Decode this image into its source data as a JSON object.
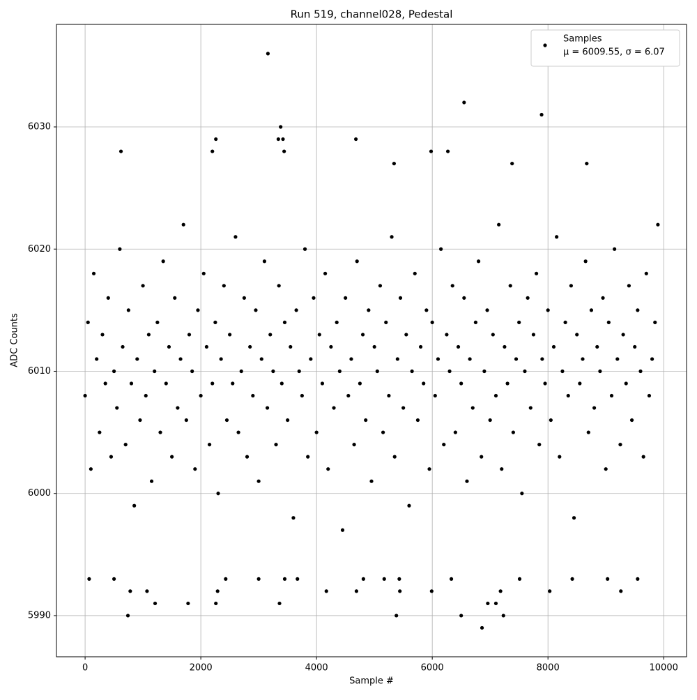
{
  "chart_data": {
    "type": "scatter",
    "title": "Run 519, channel028, Pedestal",
    "x_label": "Sample #",
    "y_label": "ADC Counts",
    "xlim": [
      -495,
      10395
    ],
    "ylim": [
      5986.63,
      6038.39
    ],
    "xticks": [
      0,
      2000,
      4000,
      6000,
      8000,
      10000
    ],
    "yticks": [
      5990,
      6000,
      6010,
      6020,
      6030
    ],
    "grid": true,
    "legend": "upper right",
    "legend_stats": "μ = 6009.55, σ = 6.07",
    "x": [
      3160,
      6550,
      7890,
      3380,
      620,
      2200,
      5980,
      6270,
      2260,
      3340,
      3420,
      4680,
      740,
      5380,
      6500,
      7230,
      6860,
      1210,
      1780,
      2260,
      3360,
      6960,
      7100,
      780,
      1070,
      2290,
      4170,
      4690,
      5440,
      5990,
      7180,
      8030,
      9260,
      70,
      500,
      2430,
      3000,
      3450,
      3670,
      4810,
      5170,
      5430,
      6330,
      7510,
      8420,
      9030,
      9550,
      8670,
      7380,
      5340,
      3440,
      0,
      50,
      100,
      150,
      200,
      250,
      300,
      350,
      400,
      450,
      500,
      550,
      600,
      650,
      700,
      750,
      800,
      850,
      900,
      950,
      1000,
      1050,
      1100,
      1150,
      1200,
      1250,
      1300,
      1350,
      1400,
      1450,
      1500,
      1550,
      1600,
      1650,
      1700,
      1750,
      1800,
      1850,
      1900,
      1950,
      2000,
      2050,
      2100,
      2150,
      2200,
      2250,
      2300,
      2350,
      2400,
      2450,
      2500,
      2550,
      2600,
      2650,
      2700,
      2750,
      2800,
      2850,
      2900,
      2950,
      3000,
      3050,
      3100,
      3150,
      3200,
      3250,
      3300,
      3350,
      3400,
      3450,
      3500,
      3550,
      3600,
      3650,
      3700,
      3750,
      3800,
      3850,
      3900,
      3950,
      4000,
      4050,
      4100,
      4150,
      4200,
      4250,
      4300,
      4350,
      4400,
      4450,
      4500,
      4550,
      4600,
      4650,
      4700,
      4750,
      4800,
      4850,
      4900,
      4950,
      5000,
      5050,
      5100,
      5150,
      5200,
      5250,
      5300,
      5350,
      5400,
      5450,
      5500,
      5550,
      5600,
      5650,
      5700,
      5750,
      5800,
      5850,
      5900,
      5950,
      6000,
      6050,
      6100,
      6150,
      6200,
      6250,
      6300,
      6350,
      6400,
      6450,
      6500,
      6550,
      6600,
      6650,
      6700,
      6750,
      6800,
      6850,
      6900,
      6950,
      7000,
      7050,
      7100,
      7150,
      7200,
      7250,
      7300,
      7350,
      7400,
      7450,
      7500,
      7550,
      7600,
      7650,
      7700,
      7750,
      7800,
      7850,
      7900,
      7950,
      8000,
      8050,
      8100,
      8150,
      8200,
      8250,
      8300,
      8350,
      8400,
      8450,
      8500,
      8550,
      8600,
      8650,
      8700,
      8750,
      8800,
      8850,
      8900,
      8950,
      9000,
      9050,
      9100,
      9150,
      9200,
      9250,
      9300,
      9350,
      9400,
      9450,
      9500,
      9550,
      9600,
      9650,
      9700,
      9750,
      9800,
      9850,
      9900
    ],
    "series": [
      {
        "name": "Samples",
        "color": "#000000",
        "values": [
          6036,
          6032,
          6031,
          6030,
          6028,
          6028,
          6028,
          6028,
          6029,
          6029,
          6029,
          6029,
          5990,
          5990,
          5990,
          5990,
          5989,
          5991,
          5991,
          5991,
          5991,
          5991,
          5991,
          5992,
          5992,
          5992,
          5992,
          5992,
          5992,
          5992,
          5992,
          5992,
          5992,
          5993,
          5993,
          5993,
          5993,
          5993,
          5993,
          5993,
          5993,
          5993,
          5993,
          5993,
          5993,
          5993,
          5993,
          6027,
          6027,
          6027,
          6028,
          6008,
          6014,
          6002,
          6018,
          6011,
          6005,
          6013,
          6009,
          6016,
          6003,
          6010,
          6007,
          6020,
          6012,
          6004,
          6015,
          6009,
          5999,
          6011,
          6006,
          6017,
          6008,
          6013,
          6001,
          6010,
          6014,
          6005,
          6019,
          6009,
          6012,
          6003,
          6016,
          6007,
          6011,
          6022,
          6006,
          6013,
          6010,
          6002,
          6015,
          6008,
          6018,
          6012,
          6004,
          6009,
          6014,
          6000,
          6011,
          6017,
          6006,
          6013,
          6009,
          6021,
          6005,
          6010,
          6016,
          6003,
          6012,
          6008,
          6015,
          6001,
          6011,
          6019,
          6007,
          6013,
          6010,
          6004,
          6017,
          6009,
          6014,
          6006,
          6012,
          5998,
          6015,
          6010,
          6008,
          6020,
          6003,
          6011,
          6016,
          6005,
          6013,
          6009,
          6018,
          6002,
          6012,
          6007,
          6014,
          6010,
          5997,
          6016,
          6008,
          6011,
          6004,
          6019,
          6009,
          6013,
          6006,
          6015,
          6001,
          6012,
          6010,
          6017,
          6005,
          6014,
          6008,
          6021,
          6003,
          6011,
          6016,
          6007,
          6013,
          5999,
          6010,
          6018,
          6006,
          6012,
          6009,
          6015,
          6002,
          6014,
          6008,
          6011,
          6020,
          6004,
          6013,
          6010,
          6017,
          6005,
          6012,
          6009,
          6016,
          6001,
          6011,
          6007,
          6014,
          6019,
          6003,
          6010,
          6015,
          6006,
          6013,
          6008,
          6022,
          6002,
          6012,
          6009,
          6017,
          6005,
          6011,
          6014,
          6000,
          6010,
          6016,
          6007,
          6013,
          6018,
          6004,
          6011,
          6009,
          6015,
          6006,
          6012,
          6021,
          6003,
          6010,
          6014,
          6008,
          6017,
          5998,
          6013,
          6009,
          6011,
          6019,
          6005,
          6015,
          6007,
          6012,
          6010,
          6016,
          6002,
          6014,
          6008,
          6020,
          6011,
          6004,
          6013,
          6009,
          6017,
          6006,
          6012,
          6015,
          6010,
          6003,
          6018,
          6008,
          6011,
          6014,
          6022
        ]
      }
    ]
  }
}
